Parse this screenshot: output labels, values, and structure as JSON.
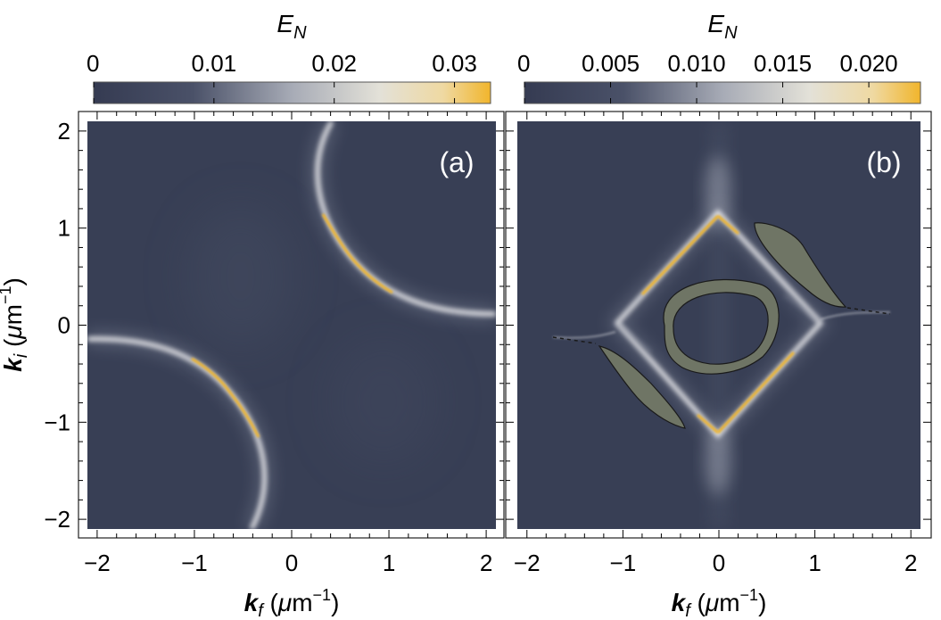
{
  "chart_data": [
    {
      "type": "heatmap",
      "panel_label": "(a)",
      "colorbar": {
        "label_base": "E",
        "label_sub": "N",
        "range": [
          0,
          0.033
        ],
        "ticks": [
          0,
          0.01,
          0.02,
          0.03
        ],
        "tick_labels": [
          "0",
          "0.01",
          "0.02",
          "0.03"
        ]
      },
      "xlabel": "k_f (μm⁻¹)",
      "ylabel": "k_i (μm⁻¹)",
      "xlim": [
        -2.1,
        2.1
      ],
      "ylim": [
        -2.1,
        2.1
      ],
      "xticks": [
        -2,
        -1,
        0,
        1,
        2
      ],
      "xtick_labels": [
        "−2",
        "−1",
        "0",
        "1",
        "2"
      ],
      "yticks": [
        -2,
        -1,
        0,
        1,
        2
      ],
      "ytick_labels": [
        "−2",
        "−1",
        "0",
        "1",
        "2"
      ],
      "features": [
        {
          "kind": "arc",
          "description": "bright arc upper-right",
          "center": [
            2.05,
            2.1
          ],
          "radius": 1.95,
          "peak_value": 0.033
        },
        {
          "kind": "arc",
          "description": "bright arc lower-left",
          "center": [
            -2.05,
            -2.1
          ],
          "radius": 1.95,
          "peak_value": 0.033
        }
      ]
    },
    {
      "type": "heatmap",
      "panel_label": "(b)",
      "colorbar": {
        "label_base": "E",
        "label_sub": "N",
        "range": [
          0,
          0.023
        ],
        "ticks": [
          0,
          0.005,
          0.01,
          0.015,
          0.02
        ],
        "tick_labels": [
          "0",
          "0.005",
          "0.010",
          "0.015",
          "0.020"
        ]
      },
      "xlabel": "k_f (μm⁻¹)",
      "ylabel": "",
      "xlim": [
        -2.1,
        2.1
      ],
      "ylim": [
        -2.1,
        2.1
      ],
      "xticks": [
        -2,
        -1,
        0,
        1,
        2
      ],
      "xtick_labels": [
        "−2",
        "−1",
        "0",
        "1",
        "2"
      ],
      "yticks": [
        -2,
        -1,
        0,
        1,
        2
      ],
      "features": [
        {
          "kind": "diamond",
          "description": "bright diamond with vertices near (0,±1.15) and (±1.05,0)",
          "vertices": [
            [
              0,
              1.15
            ],
            [
              1.05,
              0
            ],
            [
              0,
              -1.15
            ],
            [
              -1.05,
              0
            ]
          ],
          "peak_value": 0.023
        },
        {
          "kind": "region",
          "description": "grey ring region around origin"
        },
        {
          "kind": "region",
          "description": "grey lens regions along anti-diagonal"
        }
      ]
    }
  ],
  "colors": {
    "background": "#383f55",
    "mid": "#d8d8dc",
    "high": "#f1b52c",
    "region": "#6f7565"
  }
}
